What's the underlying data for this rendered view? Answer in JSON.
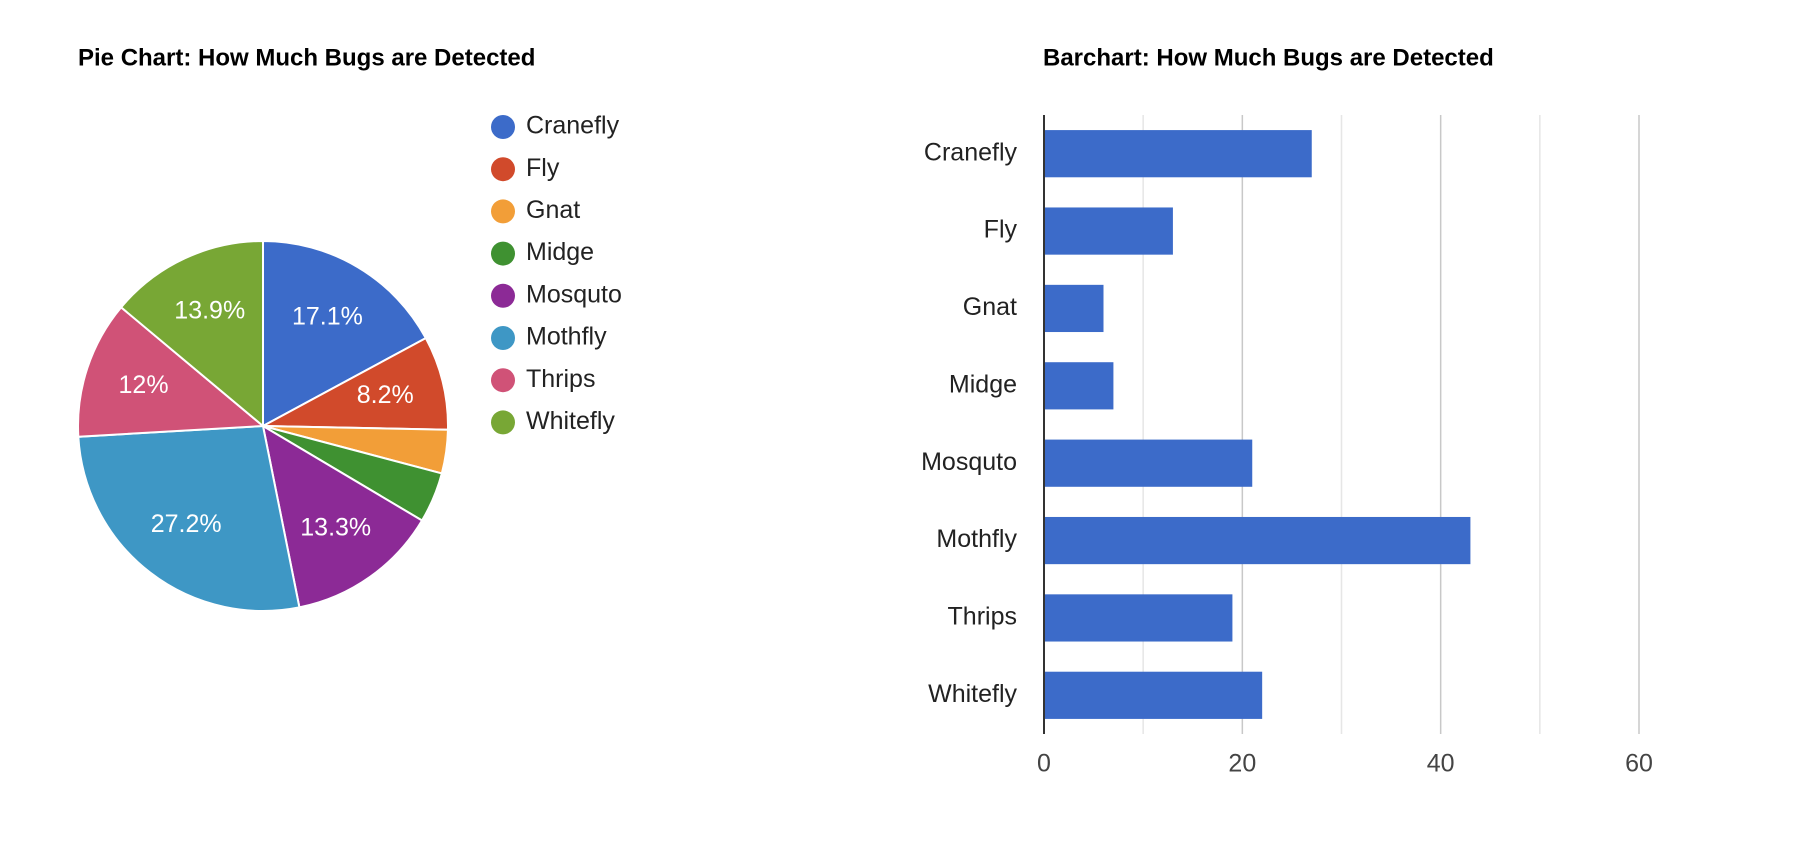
{
  "chart_data": [
    {
      "type": "pie",
      "title": "Pie Chart: How Much Bugs are Detected",
      "categories": [
        "Cranefly",
        "Fly",
        "Gnat",
        "Midge",
        "Mosquto",
        "Mothfly",
        "Thrips",
        "Whitefly"
      ],
      "values": [
        17.1,
        8.2,
        3.8,
        4.4,
        13.3,
        27.2,
        12,
        13.9
      ],
      "value_labels": [
        "17.1%",
        "8.2%",
        null,
        null,
        "13.3%",
        "27.2%",
        "12%",
        "13.9%"
      ],
      "colors": [
        "#3c6bc9",
        "#d14a2b",
        "#f29e38",
        "#3f9131",
        "#8c2a96",
        "#3e97c5",
        "#d05277",
        "#78a735"
      ],
      "legend": "right"
    },
    {
      "type": "barh",
      "title": "Barchart: How Much Bugs are Detected",
      "categories": [
        "Cranefly",
        "Fly",
        "Gnat",
        "Midge",
        "Mosquto",
        "Mothfly",
        "Thrips",
        "Whitefly"
      ],
      "values": [
        27,
        13,
        6,
        7,
        21,
        43,
        19,
        22
      ],
      "color": "#3c6bc9",
      "xlim": [
        0,
        60
      ],
      "xticks": [
        0,
        20,
        40,
        60
      ],
      "grid": true
    }
  ]
}
